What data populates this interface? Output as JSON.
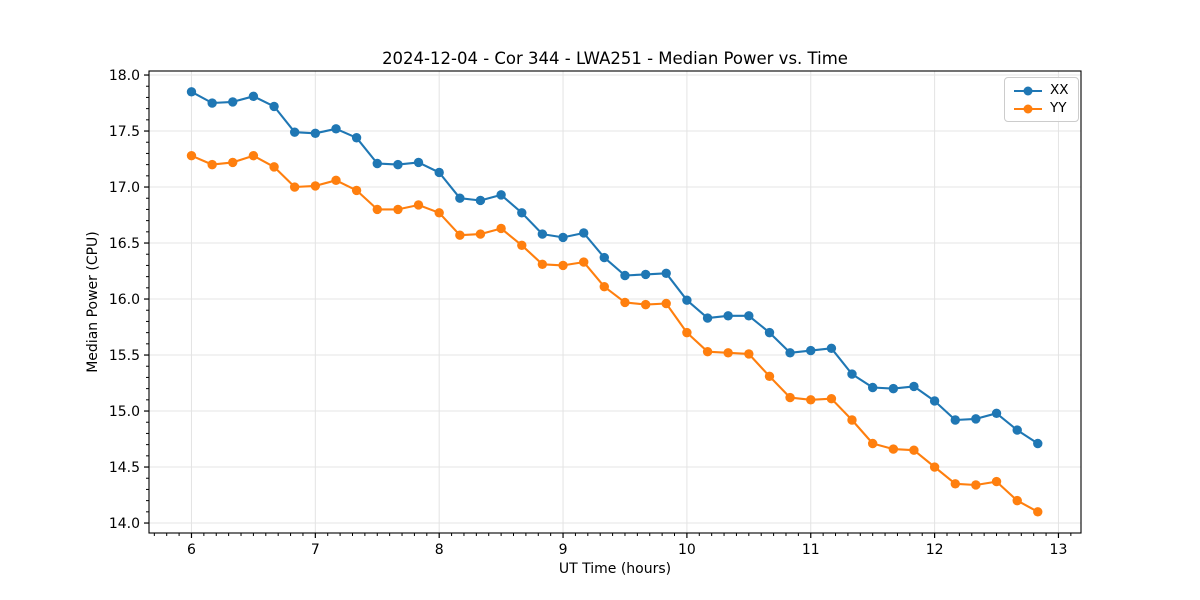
{
  "chart_data": {
    "type": "line",
    "title": "2024-12-04 - Cor 344 - LWA251 - Median Power vs. Time",
    "xlabel": "UT Time (hours)",
    "ylabel": "Median Power (CPU)",
    "xlim": [
      5.657,
      13.182
    ],
    "ylim": [
      13.911,
      18.036
    ],
    "xticks": [
      6,
      7,
      8,
      9,
      10,
      11,
      12,
      13
    ],
    "yticks": [
      14.0,
      14.5,
      15.0,
      15.5,
      16.0,
      16.5,
      17.0,
      17.5,
      18.0
    ],
    "minor_x_step": 0.1,
    "minor_y_step": 0.1,
    "grid": true,
    "grid_color": "#e4e4e4",
    "legend_position": "upper right",
    "x": [
      6.0,
      6.167,
      6.333,
      6.5,
      6.667,
      6.833,
      7.0,
      7.167,
      7.333,
      7.5,
      7.667,
      7.833,
      8.0,
      8.167,
      8.333,
      8.5,
      8.667,
      8.833,
      9.0,
      9.167,
      9.333,
      9.5,
      9.667,
      9.833,
      10.0,
      10.167,
      10.333,
      10.5,
      10.667,
      10.833,
      11.0,
      11.167,
      11.333,
      11.5,
      11.667,
      11.833,
      12.0,
      12.167,
      12.333,
      12.5,
      12.667,
      12.833
    ],
    "series": [
      {
        "name": "XX",
        "color": "#1f77b4",
        "values": [
          17.85,
          17.75,
          17.76,
          17.81,
          17.72,
          17.49,
          17.48,
          17.52,
          17.44,
          17.21,
          17.2,
          17.22,
          17.13,
          16.9,
          16.88,
          16.93,
          16.77,
          16.58,
          16.55,
          16.59,
          16.37,
          16.21,
          16.22,
          16.23,
          15.99,
          15.83,
          15.85,
          15.85,
          15.7,
          15.52,
          15.54,
          15.56,
          15.33,
          15.21,
          15.2,
          15.22,
          15.09,
          14.92,
          14.93,
          14.98,
          14.83,
          14.71
        ]
      },
      {
        "name": "YY",
        "color": "#ff7f0e",
        "values": [
          17.28,
          17.2,
          17.22,
          17.28,
          17.18,
          17.0,
          17.01,
          17.06,
          16.97,
          16.8,
          16.8,
          16.84,
          16.77,
          16.57,
          16.58,
          16.63,
          16.48,
          16.31,
          16.3,
          16.33,
          16.11,
          15.97,
          15.95,
          15.96,
          15.7,
          15.53,
          15.52,
          15.51,
          15.31,
          15.12,
          15.1,
          15.11,
          14.92,
          14.71,
          14.66,
          14.65,
          14.5,
          14.35,
          14.34,
          14.37,
          14.2,
          14.1
        ]
      }
    ]
  }
}
